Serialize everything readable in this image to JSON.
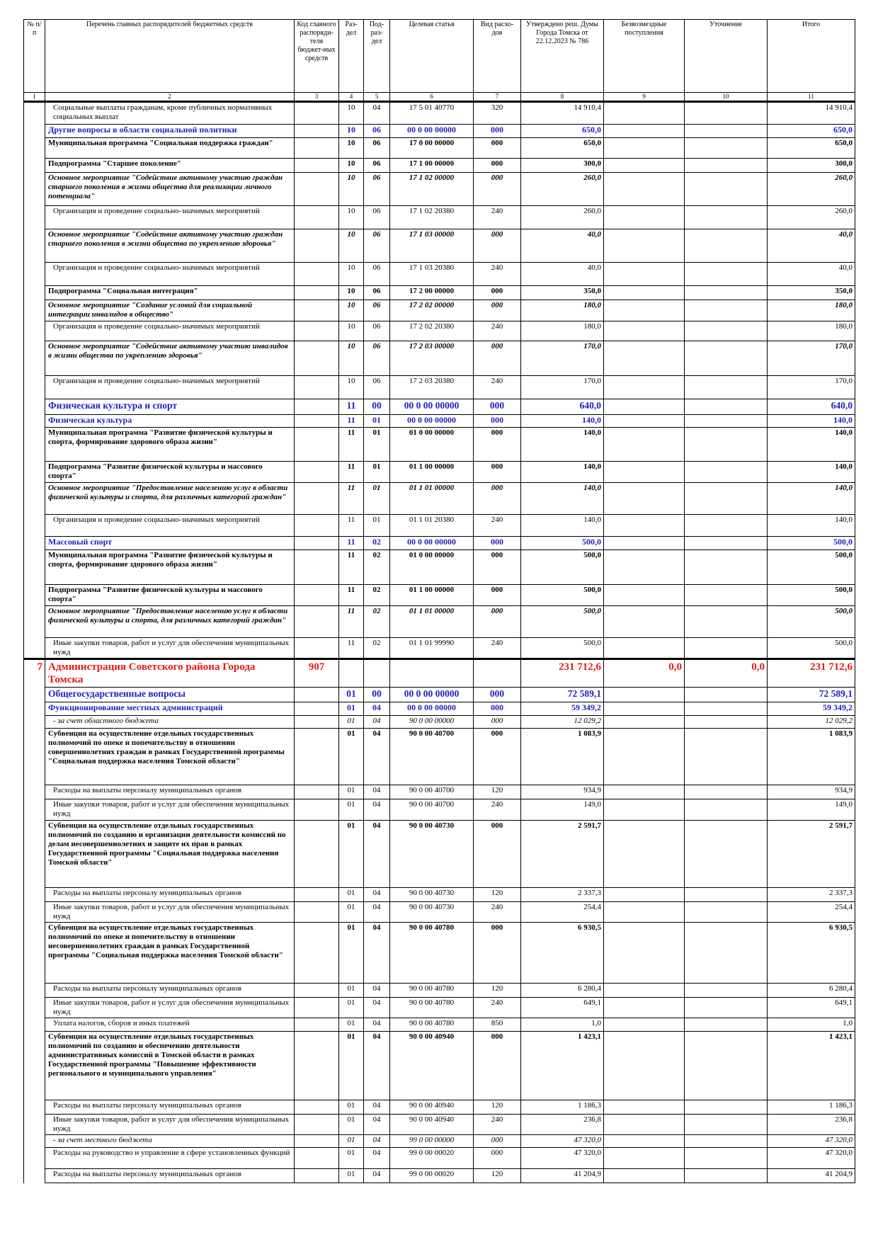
{
  "header": {
    "columns": [
      "№ п/п",
      "Перечень главных распорядителей бюджетных средств",
      "Код главного распоряди-теля бюджет-ных средств",
      "Раз-дел",
      "Под-раз-дел",
      "Целевая статья",
      "Вид расхо-дов",
      "Утверждено реш. Думы Города Томска от 22.12.2023 № 786",
      "Безвозмездные поступления",
      "Уточнение",
      "Итого"
    ],
    "numbers": [
      "1",
      "2",
      "3",
      "4",
      "5",
      "6",
      "7",
      "8",
      "9",
      "10",
      "11"
    ]
  },
  "rows": [
    [
      null,
      "Социальные выплаты гражданам, кроме публичных нормативных социальных выплат",
      null,
      "10",
      "04",
      "17 5 01 40770",
      "320",
      "14 910,4",
      null,
      null,
      "14 910,4"
    ],
    [
      null,
      "Другие вопросы в области социальной политики",
      null,
      "10",
      "06",
      "00 0 00 00000",
      "000",
      "650,0",
      null,
      null,
      "650,0"
    ],
    [
      null,
      "Муниципальная программа \"Социальная поддержка граждан\"",
      null,
      "10",
      "06",
      "17 0 00 00000",
      "000",
      "650,0",
      null,
      null,
      "650,0"
    ],
    [
      null,
      "Подпрограмма \"Старшее поколение\"",
      null,
      "10",
      "06",
      "17 1 00 00000",
      "000",
      "300,0",
      null,
      null,
      "300,0"
    ],
    [
      null,
      "Основное мероприятие \"Содействие активному участию граждан старшего поколения в жизни общества для реализации личного потенциала\"",
      null,
      "10",
      "06",
      "17 1 02 00000",
      "000",
      "260,0",
      null,
      null,
      "260,0"
    ],
    [
      null,
      "Организация и проведение социально-значимых мероприятий",
      null,
      "10",
      "06",
      "17 1 02 20380",
      "240",
      "260,0",
      null,
      null,
      "260,0"
    ],
    [
      null,
      "Основное мероприятие \"Содействие активному участию граждан старшего поколения в жизни общества по укреплению здоровья\"",
      null,
      "10",
      "06",
      "17 1 03 00000",
      "000",
      "40,0",
      null,
      null,
      "40,0"
    ],
    [
      null,
      "Организация и проведение социально-значимых мероприятий",
      null,
      "10",
      "06",
      "17 1 03 20380",
      "240",
      "40,0",
      null,
      null,
      "40,0"
    ],
    [
      null,
      "Подпрограмма \"Социальная интеграция\"",
      null,
      "10",
      "06",
      "17 2 00 00000",
      "000",
      "350,0",
      null,
      null,
      "350,0"
    ],
    [
      null,
      "Основное мероприятие \"Создание условий для социальной интеграции инвалидов в общество\"",
      null,
      "10",
      "06",
      "17 2 02 00000",
      "000",
      "180,0",
      null,
      null,
      "180,0"
    ],
    [
      null,
      "Организация и проведение социально-значимых мероприятий",
      null,
      "10",
      "06",
      "17 2 02 20380",
      "240",
      "180,0",
      null,
      null,
      "180,0"
    ],
    [
      null,
      "Основное мероприятие \"Содействие активному участию инвалидов в жизни общества по укреплению здоровья\"",
      null,
      "10",
      "06",
      "17 2 03 00000",
      "000",
      "170,0",
      null,
      null,
      "170,0"
    ],
    [
      null,
      "Организация и проведение социально-значимых мероприятий",
      null,
      "10",
      "06",
      "17 2 03 20380",
      "240",
      "170,0",
      null,
      null,
      "170,0"
    ],
    [
      null,
      "Физическая культура и спорт",
      null,
      "11",
      "00",
      "00 0 00 00000",
      "000",
      "640,0",
      null,
      null,
      "640,0"
    ],
    [
      null,
      "Физическая культура",
      null,
      "11",
      "01",
      "00 0 00 00000",
      "000",
      "140,0",
      null,
      null,
      "140,0"
    ],
    [
      null,
      "Муниципальная программа \"Развитие физической культуры и спорта, формирование здорового образа жизни\"",
      null,
      "11",
      "01",
      "01 0 00 00000",
      "000",
      "140,0",
      null,
      null,
      "140,0"
    ],
    [
      null,
      "Подпрограмма \"Развитие физической культуры и массового спорта\"",
      null,
      "11",
      "01",
      "01 1 00 00000",
      "000",
      "140,0",
      null,
      null,
      "140,0"
    ],
    [
      null,
      "Основное мероприятие \"Предоставление населению услуг в области физической культуры и спорта, для различных категорий граждан\"",
      null,
      "11",
      "01",
      "01 1 01 00000",
      "000",
      "140,0",
      null,
      null,
      "140,0"
    ],
    [
      null,
      "Организация и проведение социально-значимых мероприятий",
      null,
      "11",
      "01",
      "01 1 01 20380",
      "240",
      "140,0",
      null,
      null,
      "140,0"
    ],
    [
      null,
      "Массовый спорт",
      null,
      "11",
      "02",
      "00 0 00 00000",
      "000",
      "500,0",
      null,
      null,
      "500,0"
    ],
    [
      null,
      "Муниципальная программа \"Развитие физической культуры и спорта, формирование здорового образа жизни\"",
      null,
      "11",
      "02",
      "01 0 00 00000",
      "000",
      "500,0",
      null,
      null,
      "500,0"
    ],
    [
      null,
      "Подпрограмма \"Развитие физической культуры и массового спорта\"",
      null,
      "11",
      "02",
      "01 1 00 00000",
      "000",
      "500,0",
      null,
      null,
      "500,0"
    ],
    [
      null,
      "Основное мероприятие \"Предоставление населению услуг в области физической культуры и спорта, для различных категорий граждан\"",
      null,
      "11",
      "02",
      "01 1 01 00000",
      "000",
      "500,0",
      null,
      null,
      "500,0"
    ],
    [
      null,
      "Иные закупки товаров, работ и услуг для обеспечения муниципальных нужд",
      null,
      "11",
      "02",
      "01 1 01 99990",
      "240",
      "500,0",
      null,
      null,
      "500,0"
    ],
    [
      "7",
      "Администрация Советского района Города Томска",
      "907",
      null,
      null,
      null,
      null,
      "231 712,6",
      "0,0",
      "0,0",
      "231 712,6"
    ],
    [
      null,
      "Общегосударственные вопросы",
      null,
      "01",
      "00",
      "00 0 00 00000",
      "000",
      "72 589,1",
      null,
      null,
      "72 589,1"
    ],
    [
      null,
      "Функционирование местных администраций",
      null,
      "01",
      "04",
      "00 0 00 00000",
      "000",
      "59 349,2",
      null,
      null,
      "59 349,2"
    ],
    [
      null,
      "- за счет областного бюджета",
      null,
      "01",
      "04",
      "90 0 00 00000",
      "000",
      "12 029,2",
      null,
      null,
      "12 029,2"
    ],
    [
      null,
      "Субвенция на осуществление отдельных государственных полномочий по опеке и попечительству в отношении совершеннолетних граждан в рамках Государственной программы \"Социальная поддержка населения Томской области\"",
      null,
      "01",
      "04",
      "90 0 00 40700",
      "000",
      "1 083,9",
      null,
      null,
      "1 083,9"
    ],
    [
      null,
      "Расходы на выплаты персоналу муниципальных органов",
      null,
      "01",
      "04",
      "90 0 00 40700",
      "120",
      "934,9",
      null,
      null,
      "934,9"
    ],
    [
      null,
      "Иные закупки товаров, работ и услуг для обеспечения муниципальных нужд",
      null,
      "01",
      "04",
      "90 0 00 40700",
      "240",
      "149,0",
      null,
      null,
      "149,0"
    ],
    [
      null,
      "Субвенция на осуществление отдельных государственных полномочий по созданию и организации деятельности комиссий по делам несовершеннолетних и защите их прав в рамках Государственной программы \"Социальная поддержка населения Томской области\"",
      null,
      "01",
      "04",
      "90 0 00 40730",
      "000",
      "2 591,7",
      null,
      null,
      "2 591,7"
    ],
    [
      null,
      "Расходы на выплаты персоналу муниципальных органов",
      null,
      "01",
      "04",
      "90 0 00 40730",
      "120",
      "2 337,3",
      null,
      null,
      "2 337,3"
    ],
    [
      null,
      "Иные закупки товаров, работ и услуг для обеспечения муниципальных нужд",
      null,
      "01",
      "04",
      "90 0 00 40730",
      "240",
      "254,4",
      null,
      null,
      "254,4"
    ],
    [
      null,
      "Субвенция на осуществление отдельных государственных полномочий по опеке и попечительству в отношении несовершеннолетних граждан в рамках Государственной программы \"Социальная поддержка населения Томской области\"",
      null,
      "01",
      "04",
      "90 0 00 40780",
      "000",
      "6 930,5",
      null,
      null,
      "6 930,5"
    ],
    [
      null,
      "Расходы на выплаты персоналу муниципальных органов",
      null,
      "01",
      "04",
      "90 0 00 40780",
      "120",
      "6 280,4",
      null,
      null,
      "6 280,4"
    ],
    [
      null,
      "Иные закупки товаров, работ и услуг для обеспечения муниципальных нужд",
      null,
      "01",
      "04",
      "90 0 00 40780",
      "240",
      "649,1",
      null,
      null,
      "649,1"
    ],
    [
      null,
      "Уплата налогов, сборов и иных платежей",
      null,
      "01",
      "04",
      "90 0 00 40780",
      "850",
      "1,0",
      null,
      null,
      "1,0"
    ],
    [
      null,
      "Субвенция на осуществление отдельных государственных полномочий по созданию и обеспечению деятельности административных комиссий в Томской области в рамках Государственной программы \"Повышение эффективности регионального и муниципального управления\"",
      null,
      "01",
      "04",
      "90 0 00 40940",
      "000",
      "1 423,1",
      null,
      null,
      "1 423,1"
    ],
    [
      null,
      "Расходы на выплаты персоналу муниципальных органов",
      null,
      "01",
      "04",
      "90 0 00 40940",
      "120",
      "1 186,3",
      null,
      null,
      "1 186,3"
    ],
    [
      null,
      "Иные закупки товаров, работ и услуг для обеспечения муниципальных нужд",
      null,
      "01",
      "04",
      "90 0 00 40940",
      "240",
      "236,8",
      null,
      null,
      "236,8"
    ],
    [
      null,
      "- за счет местного бюджета",
      null,
      "01",
      "04",
      "99 0 00 00000",
      "000",
      "47 320,0",
      null,
      null,
      "47 320,0"
    ],
    [
      null,
      "Расходы на руководство и управление в сфере установленных функций",
      null,
      "01",
      "04",
      "99 0 00 00020",
      "000",
      "47 320,0",
      null,
      null,
      "47 320,0"
    ],
    [
      null,
      "Расходы на выплаты персоналу муниципальных органов",
      null,
      "01",
      "04",
      "99 0 00 00020",
      "120",
      "41 204,9",
      null,
      null,
      "41 204,9"
    ]
  ]
}
